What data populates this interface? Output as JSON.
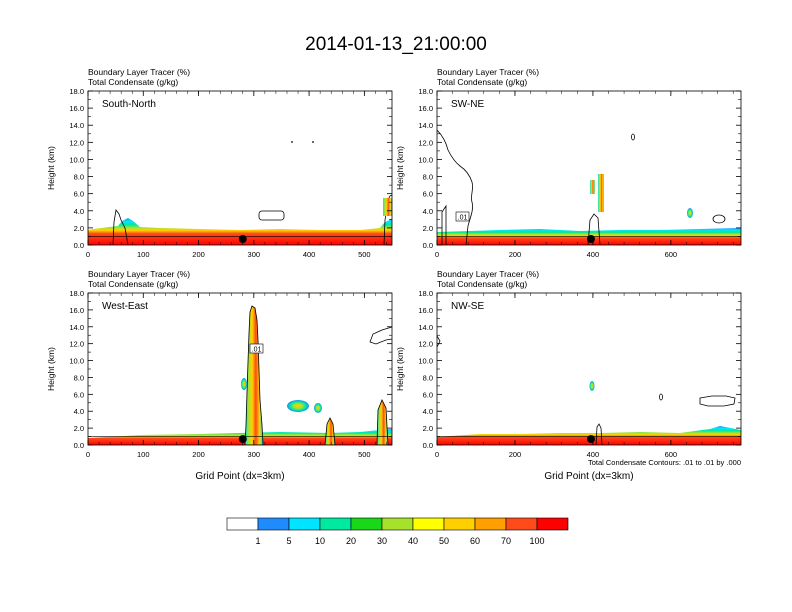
{
  "title": "2014-01-13_21:00:00",
  "footnote": "Total Condensate Contours: .01 to .01 by .000",
  "colorbar": {
    "labels": [
      "1",
      "5",
      "10",
      "20",
      "30",
      "40",
      "50",
      "60",
      "70",
      "100"
    ],
    "colors": [
      "#ffffff",
      "#1e8cff",
      "#00e5ff",
      "#00e9a0",
      "#18d818",
      "#a6e22c",
      "#ffff00",
      "#ffd000",
      "#ff9f00",
      "#ff4a1a",
      "#ff0000"
    ]
  },
  "chart_data": [
    {
      "type": "heatmap",
      "panel": "South-North",
      "subtitle_1": "Boundary Layer Tracer   (%)",
      "subtitle_2": "Total Condensate   (g/kg)",
      "xlabel": "",
      "ylabel": "Height (km)",
      "xlim": [
        0,
        550
      ],
      "ylim": [
        0,
        18
      ],
      "x_ticks": [
        "0",
        "100",
        "200",
        "300",
        "400",
        "500"
      ],
      "y_ticks": [
        "0.0",
        "2.0",
        "4.0",
        "6.0",
        "8.0",
        "10.0",
        "12.0",
        "14.0",
        "16.0",
        "18.0"
      ],
      "marker_x": 280
    },
    {
      "type": "heatmap",
      "panel": "SW-NE",
      "subtitle_1": "Boundary Layer Tracer   (%)",
      "subtitle_2": "Total Condensate   (g/kg)",
      "xlabel": "",
      "ylabel": "Height (km)",
      "xlim": [
        0,
        780
      ],
      "ylim": [
        0,
        18
      ],
      "x_ticks": [
        "0",
        "200",
        "400",
        "600"
      ],
      "y_ticks": [
        "0.0",
        "2.0",
        "4.0",
        "6.0",
        "8.0",
        "10.0",
        "12.0",
        "14.0",
        "16.0",
        "18.0"
      ],
      "contour_label": ".01",
      "marker_x": 395
    },
    {
      "type": "heatmap",
      "panel": "West-East",
      "subtitle_1": "Boundary Layer Tracer   (%)",
      "subtitle_2": "Total Condensate   (g/kg)",
      "xlabel": "Grid Point (dx=3km)",
      "ylabel": "Height (km)",
      "xlim": [
        0,
        550
      ],
      "ylim": [
        0,
        18
      ],
      "x_ticks": [
        "0",
        "100",
        "200",
        "300",
        "400",
        "500"
      ],
      "y_ticks": [
        "0.0",
        "2.0",
        "4.0",
        "6.0",
        "8.0",
        "10.0",
        "12.0",
        "14.0",
        "16.0",
        "18.0"
      ],
      "contour_label": ".01",
      "marker_x": 280
    },
    {
      "type": "heatmap",
      "panel": "NW-SE",
      "subtitle_1": "Boundary Layer Tracer   (%)",
      "subtitle_2": "Total Condensate   (g/kg)",
      "xlabel": "Grid Point (dx=3km)",
      "ylabel": "Height (km)",
      "xlim": [
        0,
        780
      ],
      "ylim": [
        0,
        18
      ],
      "x_ticks": [
        "0",
        "200",
        "400",
        "600"
      ],
      "y_ticks": [
        "0.0",
        "2.0",
        "4.0",
        "6.0",
        "8.0",
        "10.0",
        "12.0",
        "14.0",
        "16.0",
        "18.0"
      ],
      "marker_x": 395
    }
  ]
}
